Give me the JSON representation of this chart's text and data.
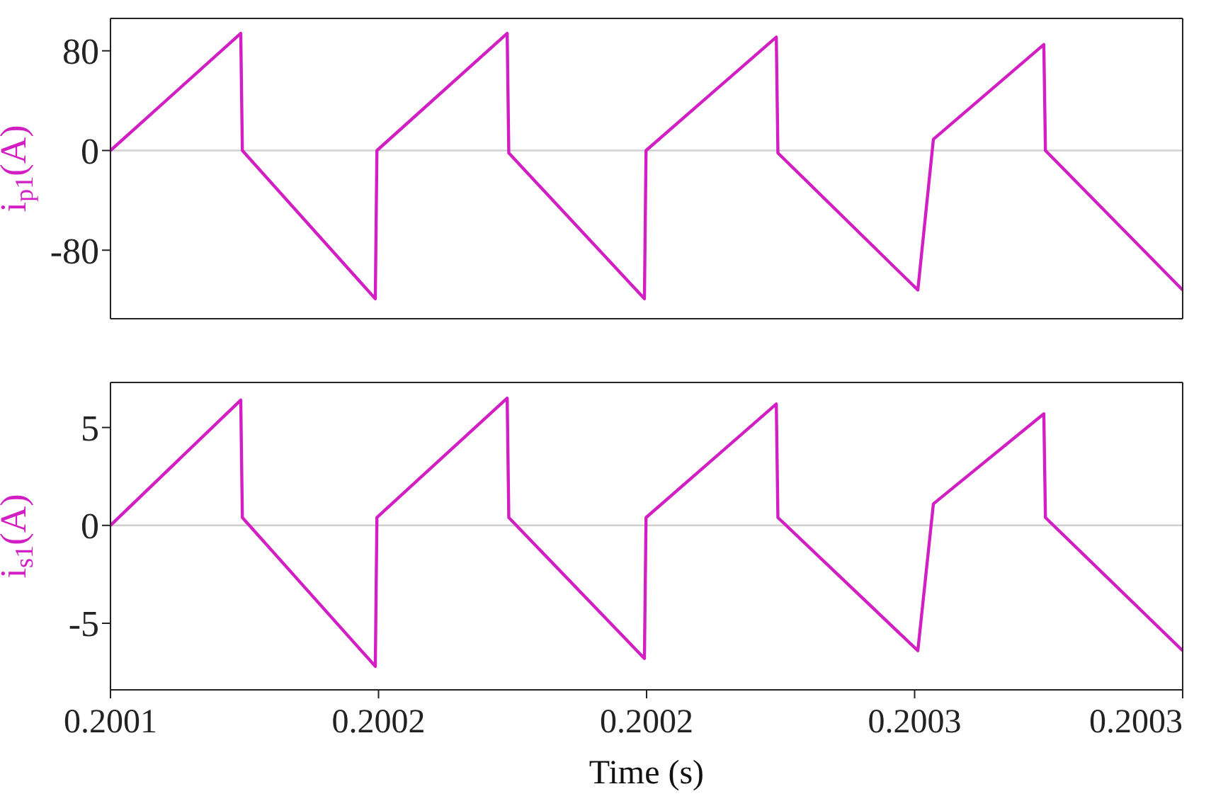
{
  "chart_data": [
    {
      "type": "line",
      "ylabel": "i$_{p1}$(A)",
      "x": [
        0.2001,
        0.2001243,
        0.2001246,
        0.2001494,
        0.2001497,
        0.200174,
        0.2001743,
        0.2001996,
        0.2001999,
        0.2002242,
        0.2002245,
        0.2002506,
        0.2002535,
        0.2002741,
        0.2002744,
        0.2003
      ],
      "series": [
        {
          "color": "#d21fc3",
          "values": [
            0,
            94,
            0,
            -119,
            0,
            94,
            -2,
            -119,
            0,
            91,
            -2,
            -112,
            9,
            85,
            0,
            -112
          ]
        }
      ],
      "xlim": [
        0.2001,
        0.2003
      ],
      "xticks": [
        {
          "value": 0.2001,
          "label": null
        },
        {
          "value": 0.20015,
          "label": null
        },
        {
          "value": 0.2002,
          "label": null
        },
        {
          "value": 0.20025,
          "label": null
        },
        {
          "value": 0.2003,
          "label": null
        }
      ],
      "ylim": [
        -135,
        106
      ],
      "yticks": [
        -80,
        0,
        80
      ],
      "tick_labels": "y",
      "grid": false,
      "legend": false,
      "marker": "none",
      "line_style": "solid",
      "ref_lines": [
        {
          "axis": "y",
          "value": 0,
          "color": "#d0d0d0"
        }
      ]
    },
    {
      "type": "line",
      "xlabel": "Time (s)",
      "ylabel": "i$_{s1}$(A)",
      "x": [
        0.2001,
        0.2001243,
        0.2001246,
        0.2001494,
        0.2001497,
        0.200174,
        0.2001743,
        0.2001996,
        0.2001999,
        0.2002242,
        0.2002245,
        0.2002506,
        0.2002535,
        0.2002741,
        0.2002744,
        0.2003
      ],
      "series": [
        {
          "color": "#d21fc3",
          "values": [
            0,
            6.4,
            0.4,
            -7.2,
            0.4,
            6.5,
            0.4,
            -6.8,
            0.4,
            6.2,
            0.4,
            -6.4,
            1.1,
            5.7,
            0.4,
            -6.4
          ]
        }
      ],
      "xlim": [
        0.2001,
        0.2003
      ],
      "xticks": [
        {
          "value": 0.2001,
          "label": "0.2001"
        },
        {
          "value": 0.20015,
          "label": "0.2002"
        },
        {
          "value": 0.2002,
          "label": "0.2002"
        },
        {
          "value": 0.20025,
          "label": "0.2003"
        },
        {
          "value": 0.2003,
          "label": "0.2003"
        }
      ],
      "ylim": [
        -8.4,
        7.3
      ],
      "yticks": [
        -5,
        0,
        5
      ],
      "grid": false,
      "legend": false,
      "marker": "none",
      "line_style": "solid",
      "ref_lines": [
        {
          "axis": "y",
          "value": 0,
          "color": "#d0d0d0"
        }
      ]
    }
  ]
}
